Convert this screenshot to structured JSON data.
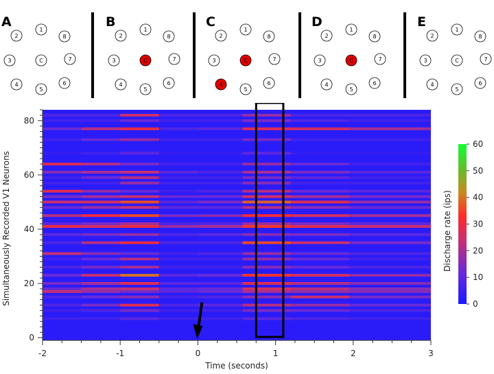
{
  "panels": [
    {
      "letter": "A",
      "active": []
    },
    {
      "letter": "B",
      "active": [
        "C"
      ]
    },
    {
      "letter": "C",
      "active": [
        "C",
        "4"
      ]
    },
    {
      "letter": "D",
      "active": [
        "C"
      ]
    },
    {
      "letter": "E",
      "active": []
    }
  ],
  "electrode_labels": [
    "2",
    "1",
    "8",
    "3",
    "C",
    "7",
    "4",
    "5",
    "6"
  ],
  "chart_data": {
    "type": "heatmap",
    "title": "",
    "xlabel": "Time (seconds)",
    "ylabel": "Simultaneously Recorded V1 Neurons",
    "xlim": [
      -2,
      3
    ],
    "ylim": [
      -1,
      84
    ],
    "xticks": [
      -2,
      -1,
      0,
      1,
      2,
      3
    ],
    "yticks": [
      0,
      20,
      40,
      60,
      80
    ],
    "colorbar": {
      "label": "Discharge rate (ips)",
      "range": [
        0,
        60
      ],
      "ticks": [
        0,
        10,
        20,
        30,
        40,
        50,
        60
      ]
    },
    "stimulus_onset_arrow_x": 0,
    "highlight_window": {
      "x_start": 0.75,
      "x_end": 1.1
    },
    "neurons": [
      {
        "y": 82,
        "rate": [
          8,
          8,
          25,
          8,
          8,
          18,
          8,
          8
        ]
      },
      {
        "y": 80,
        "rate": [
          6,
          6,
          12,
          6,
          6,
          14,
          8,
          6
        ]
      },
      {
        "y": 77,
        "rate": [
          12,
          22,
          30,
          8,
          10,
          28,
          26,
          20
        ]
      },
      {
        "y": 73,
        "rate": [
          6,
          12,
          18,
          6,
          6,
          14,
          6,
          6
        ]
      },
      {
        "y": 68,
        "rate": [
          4,
          6,
          10,
          4,
          4,
          10,
          4,
          4
        ]
      },
      {
        "y": 64,
        "rate": [
          28,
          22,
          14,
          6,
          6,
          18,
          12,
          6
        ]
      },
      {
        "y": 61,
        "rate": [
          16,
          20,
          24,
          10,
          8,
          20,
          14,
          10
        ]
      },
      {
        "y": 59,
        "rate": [
          6,
          12,
          22,
          6,
          6,
          14,
          10,
          6
        ]
      },
      {
        "y": 57,
        "rate": [
          6,
          6,
          18,
          6,
          6,
          16,
          6,
          6
        ]
      },
      {
        "y": 54,
        "rate": [
          28,
          18,
          12,
          6,
          8,
          22,
          12,
          10
        ]
      },
      {
        "y": 52,
        "rate": [
          14,
          20,
          24,
          12,
          12,
          26,
          20,
          14
        ]
      },
      {
        "y": 50,
        "rate": [
          24,
          26,
          36,
          10,
          14,
          38,
          28,
          18
        ]
      },
      {
        "y": 48,
        "rate": [
          12,
          18,
          24,
          10,
          10,
          22,
          16,
          12
        ]
      },
      {
        "y": 45,
        "rate": [
          22,
          30,
          36,
          14,
          16,
          32,
          26,
          20
        ]
      },
      {
        "y": 42,
        "rate": [
          10,
          14,
          20,
          8,
          8,
          18,
          14,
          10
        ]
      },
      {
        "y": 41,
        "rate": [
          30,
          26,
          30,
          18,
          20,
          34,
          28,
          24
        ]
      },
      {
        "y": 38,
        "rate": [
          10,
          14,
          18,
          8,
          10,
          16,
          14,
          10
        ]
      },
      {
        "y": 35,
        "rate": [
          8,
          22,
          30,
          8,
          8,
          36,
          24,
          14
        ]
      },
      {
        "y": 31,
        "rate": [
          24,
          16,
          12,
          6,
          8,
          18,
          12,
          8
        ]
      },
      {
        "y": 29,
        "rate": [
          6,
          12,
          22,
          6,
          6,
          18,
          12,
          6
        ]
      },
      {
        "y": 26,
        "rate": [
          8,
          14,
          20,
          6,
          6,
          16,
          12,
          8
        ]
      },
      {
        "y": 23,
        "rate": [
          12,
          24,
          40,
          10,
          12,
          34,
          26,
          18
        ]
      },
      {
        "y": 20,
        "rate": [
          14,
          20,
          28,
          10,
          10,
          28,
          22,
          16
        ]
      },
      {
        "y": 18,
        "rate": [
          12,
          20,
          24,
          10,
          12,
          26,
          22,
          16
        ]
      },
      {
        "y": 17,
        "rate": [
          24,
          18,
          14,
          10,
          12,
          20,
          18,
          16
        ]
      },
      {
        "y": 15,
        "rate": [
          8,
          12,
          16,
          6,
          8,
          16,
          24,
          14
        ]
      },
      {
        "y": 12,
        "rate": [
          8,
          14,
          28,
          8,
          10,
          22,
          18,
          12
        ]
      },
      {
        "y": 10,
        "rate": [
          6,
          8,
          14,
          6,
          6,
          14,
          12,
          8
        ]
      },
      {
        "y": 7,
        "rate": [
          6,
          6,
          10,
          6,
          6,
          10,
          8,
          6
        ]
      }
    ],
    "rate_time_bins": [
      -1.75,
      -1.25,
      -0.75,
      -0.25,
      0.25,
      0.9,
      1.5,
      2.4
    ]
  }
}
